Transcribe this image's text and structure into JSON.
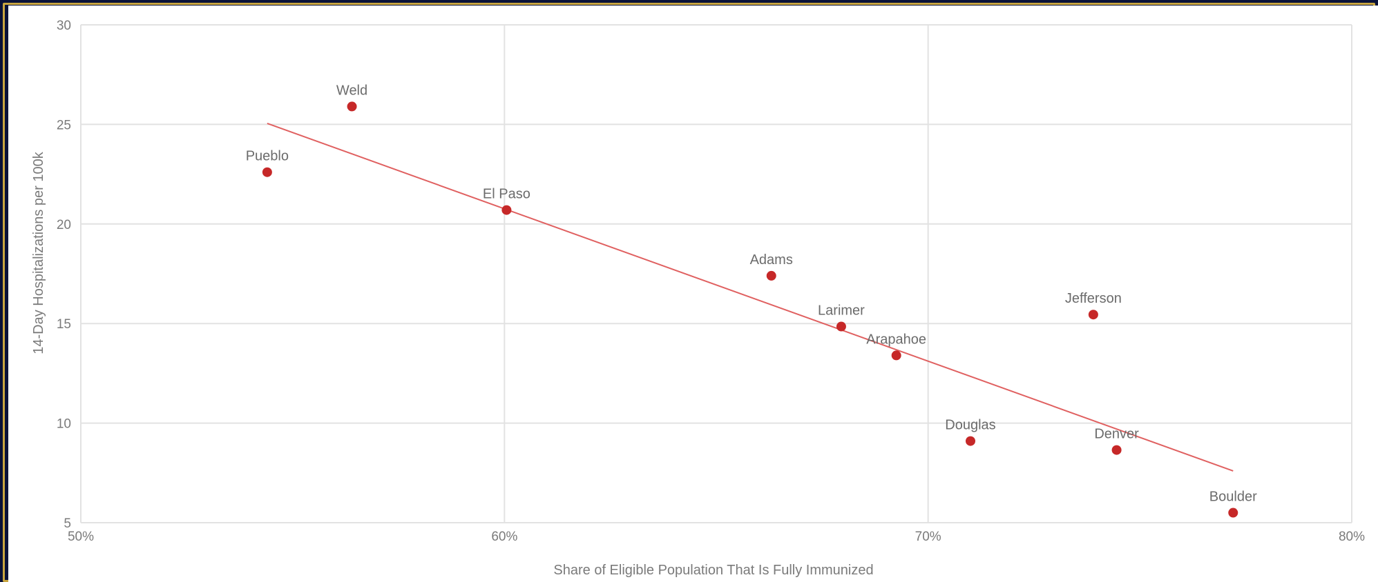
{
  "chart_data": {
    "type": "scatter",
    "title": "",
    "xlabel": "Share of Eligible Population That Is Fully Immunized",
    "ylabel": "14-Day Hospitalizations per 100k",
    "xlim": [
      50,
      80
    ],
    "ylim": [
      5,
      30
    ],
    "x_ticks": [
      50,
      60,
      70,
      80
    ],
    "x_tick_labels": [
      "50%",
      "60%",
      "70%",
      "80%"
    ],
    "y_ticks": [
      5,
      10,
      15,
      20,
      25,
      30
    ],
    "y_tick_labels": [
      "5",
      "10",
      "15",
      "20",
      "25",
      "30"
    ],
    "grid": true,
    "point_color": "#c62828",
    "trendline_color": "#e06060",
    "points": [
      {
        "label": "Pueblo",
        "x": 54.4,
        "y": 22.6
      },
      {
        "label": "Weld",
        "x": 56.4,
        "y": 25.9
      },
      {
        "label": "El Paso",
        "x": 60.05,
        "y": 20.7
      },
      {
        "label": "Adams",
        "x": 66.3,
        "y": 17.4
      },
      {
        "label": "Larimer",
        "x": 67.95,
        "y": 14.85
      },
      {
        "label": "Arapahoe",
        "x": 69.25,
        "y": 13.4
      },
      {
        "label": "Douglas",
        "x": 71.0,
        "y": 9.1
      },
      {
        "label": "Jefferson",
        "x": 73.9,
        "y": 15.45
      },
      {
        "label": "Denver",
        "x": 74.45,
        "y": 8.65
      },
      {
        "label": "Boulder",
        "x": 77.2,
        "y": 5.5
      }
    ],
    "trendline": {
      "x": [
        54.4,
        77.2
      ],
      "y": [
        25.05,
        7.6
      ]
    }
  }
}
